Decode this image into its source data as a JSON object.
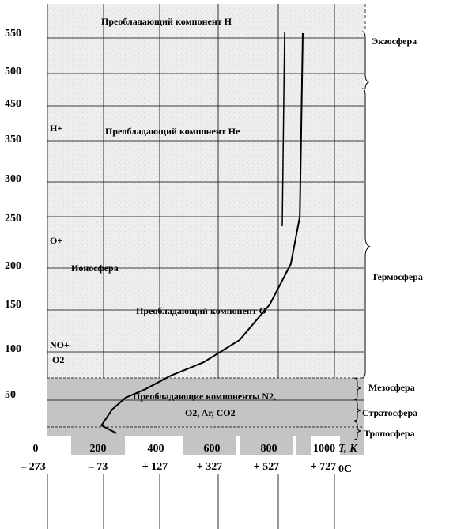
{
  "chart_data": {
    "type": "line",
    "title": "",
    "y_ticks": [
      "550",
      "500",
      "450",
      "350",
      "300",
      "250",
      "200",
      "150",
      "100",
      "50"
    ],
    "x_ticks_k": [
      "0",
      "200",
      "400",
      "600",
      "800",
      "1000"
    ],
    "x_axis_label": "T, K",
    "x_ticks_c": [
      "– 273",
      "– 73",
      "+ 127",
      "+ 327",
      "+ 527",
      "+ 727"
    ],
    "x_axis_label_c": "0C",
    "series": [
      {
        "x": [
          230,
          180,
          215,
          260,
          325,
          410,
          520,
          640,
          740,
          810,
          840,
          850
        ],
        "y": [
          0,
          10,
          30,
          45,
          55,
          70,
          85,
          110,
          150,
          200,
          250,
          550
        ]
      }
    ],
    "annotations": [
      {
        "text": "Преобладающий компонент  H"
      },
      {
        "text": "Н+"
      },
      {
        "text": "Преобладающий компонент  Не"
      },
      {
        "text": "O+"
      },
      {
        "text": "Ионосфера"
      },
      {
        "text": "Преобладающий компонент   О"
      },
      {
        "text": "NO+"
      },
      {
        "text": "O2"
      },
      {
        "text": "Преобладающие компоненты N2,"
      },
      {
        "text": "O2, Ar, CO2"
      }
    ],
    "regions": [
      "Экзосфера",
      "Термосфера",
      "Мезосфера",
      "Стратосфера",
      "Тропосфера"
    ],
    "colors": {
      "background": "#ededed",
      "lower_atmosphere": "#c4c4c4",
      "line": "#000000"
    }
  }
}
